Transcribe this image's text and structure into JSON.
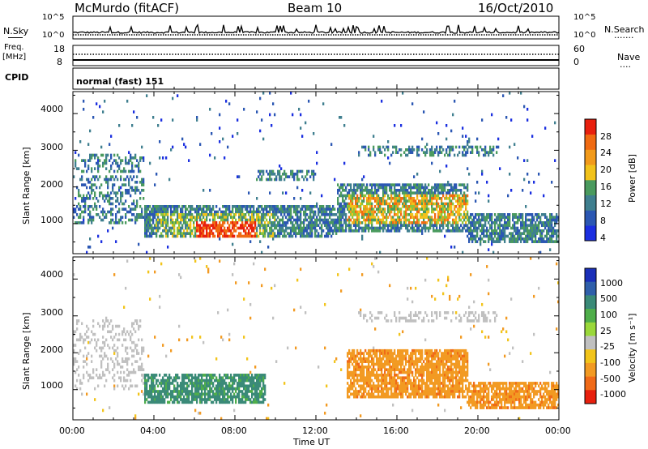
{
  "header": {
    "station": "McMurdo (fitACF)",
    "beam": "Beam 10",
    "date": "16/Oct/2010"
  },
  "top_panels": {
    "nsky_label": "N.Sky",
    "nsearch_label": "N.Search",
    "nsearch_dots": "·······",
    "nsky_ticks": [
      "10^5",
      "10^0"
    ],
    "nsearch_ticks": [
      "10^5",
      "10^0"
    ],
    "freq_label": [
      "Freq.",
      "[MHz]"
    ],
    "freq_ticks": [
      "18",
      "8"
    ],
    "nave_label": "Nave",
    "nave_dots": "····",
    "nave_ticks": [
      "60",
      "0"
    ],
    "cpid_label": "CPID",
    "cpid_value": "normal (fast) 151"
  },
  "x_axis": {
    "ticks": [
      "00:00",
      "04:00",
      "08:00",
      "12:00",
      "16:00",
      "20:00",
      "00:00"
    ],
    "label": "Time UT"
  },
  "colors": {
    "power_scale": [
      "#1b2fe0",
      "#2b57b3",
      "#3f7f8f",
      "#4a9a5e",
      "#8cc43a",
      "#f2c21a",
      "#f29a1a",
      "#f06a12",
      "#e8200e"
    ],
    "velocity_scale": [
      "#1a2fb8",
      "#2f5faa",
      "#3a8a78",
      "#4fae4a",
      "#9ad83a",
      "#c0c0c0",
      "#f2c41a",
      "#f29a22",
      "#f06a18",
      "#e8200e"
    ]
  },
  "chart_data": [
    {
      "type": "heatmap",
      "title": "",
      "ylabel": "Slant Range [km]",
      "xlabel": "",
      "yticks": [
        "1000",
        "2000",
        "3000",
        "4000"
      ],
      "ylim": [
        180,
        4600
      ],
      "colorbar_label": "Power [dB]",
      "colorbar_ticks": [
        "4",
        "8",
        "12",
        "16",
        "20",
        "24",
        "28"
      ],
      "colorbar_range": [
        0,
        32
      ]
    },
    {
      "type": "heatmap",
      "title": "",
      "ylabel": "Slant Range [km]",
      "xlabel": "Time UT",
      "yticks": [
        "1000",
        "2000",
        "3000",
        "4000"
      ],
      "ylim": [
        180,
        4600
      ],
      "colorbar_label": "Velocity [m s⁻¹]",
      "colorbar_ticks": [
        "1000",
        "500",
        "100",
        "25",
        "-25",
        "-100",
        "-500",
        "-1000"
      ]
    }
  ]
}
